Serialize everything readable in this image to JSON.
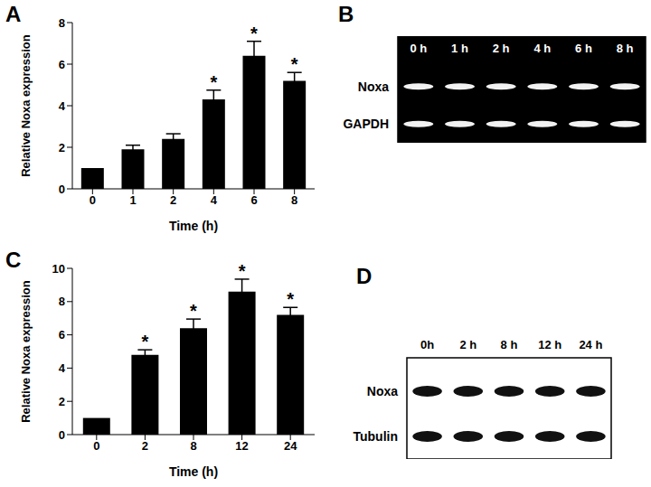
{
  "chart_data": [
    {
      "panel": "A",
      "type": "bar",
      "categories": [
        "0",
        "1",
        "2",
        "4",
        "6",
        "8"
      ],
      "values": [
        1,
        1.9,
        2.4,
        4.3,
        6.4,
        5.2
      ],
      "errors": [
        0,
        0.2,
        0.25,
        0.45,
        0.7,
        0.4
      ],
      "annotations": [
        null,
        null,
        null,
        "*",
        "*",
        "*"
      ],
      "color": "#000000",
      "x_label": "Time (h)",
      "y_label": "Relative Noxa expression",
      "ylim": [
        0,
        8
      ],
      "yticks": [
        0,
        2,
        4,
        6,
        8
      ]
    },
    {
      "panel": "B",
      "type": "gel",
      "lanes": [
        "0 h",
        "1 h",
        "2 h",
        "4 h",
        "6 h",
        "8 h"
      ],
      "rows": [
        "Noxa",
        "GAPDH"
      ],
      "color": "#000000"
    },
    {
      "panel": "C",
      "type": "bar",
      "categories": [
        "0",
        "2",
        "8",
        "12",
        "24"
      ],
      "values": [
        1,
        4.8,
        6.4,
        8.6,
        7.2
      ],
      "errors": [
        0,
        0.3,
        0.55,
        0.75,
        0.45
      ],
      "annotations": [
        null,
        "*",
        "*",
        "*",
        "*"
      ],
      "color": "#000000",
      "x_label": "Time (h)",
      "y_label": "Relative Noxa expression",
      "ylim": [
        0,
        10
      ],
      "yticks": [
        0,
        2,
        4,
        6,
        8,
        10
      ]
    },
    {
      "panel": "D",
      "type": "gel",
      "lanes": [
        "0h",
        "2 h",
        "8 h",
        "12 h",
        "24 h"
      ],
      "rows": [
        "Noxa",
        "Tubulin"
      ],
      "color": "#ffffff"
    }
  ]
}
